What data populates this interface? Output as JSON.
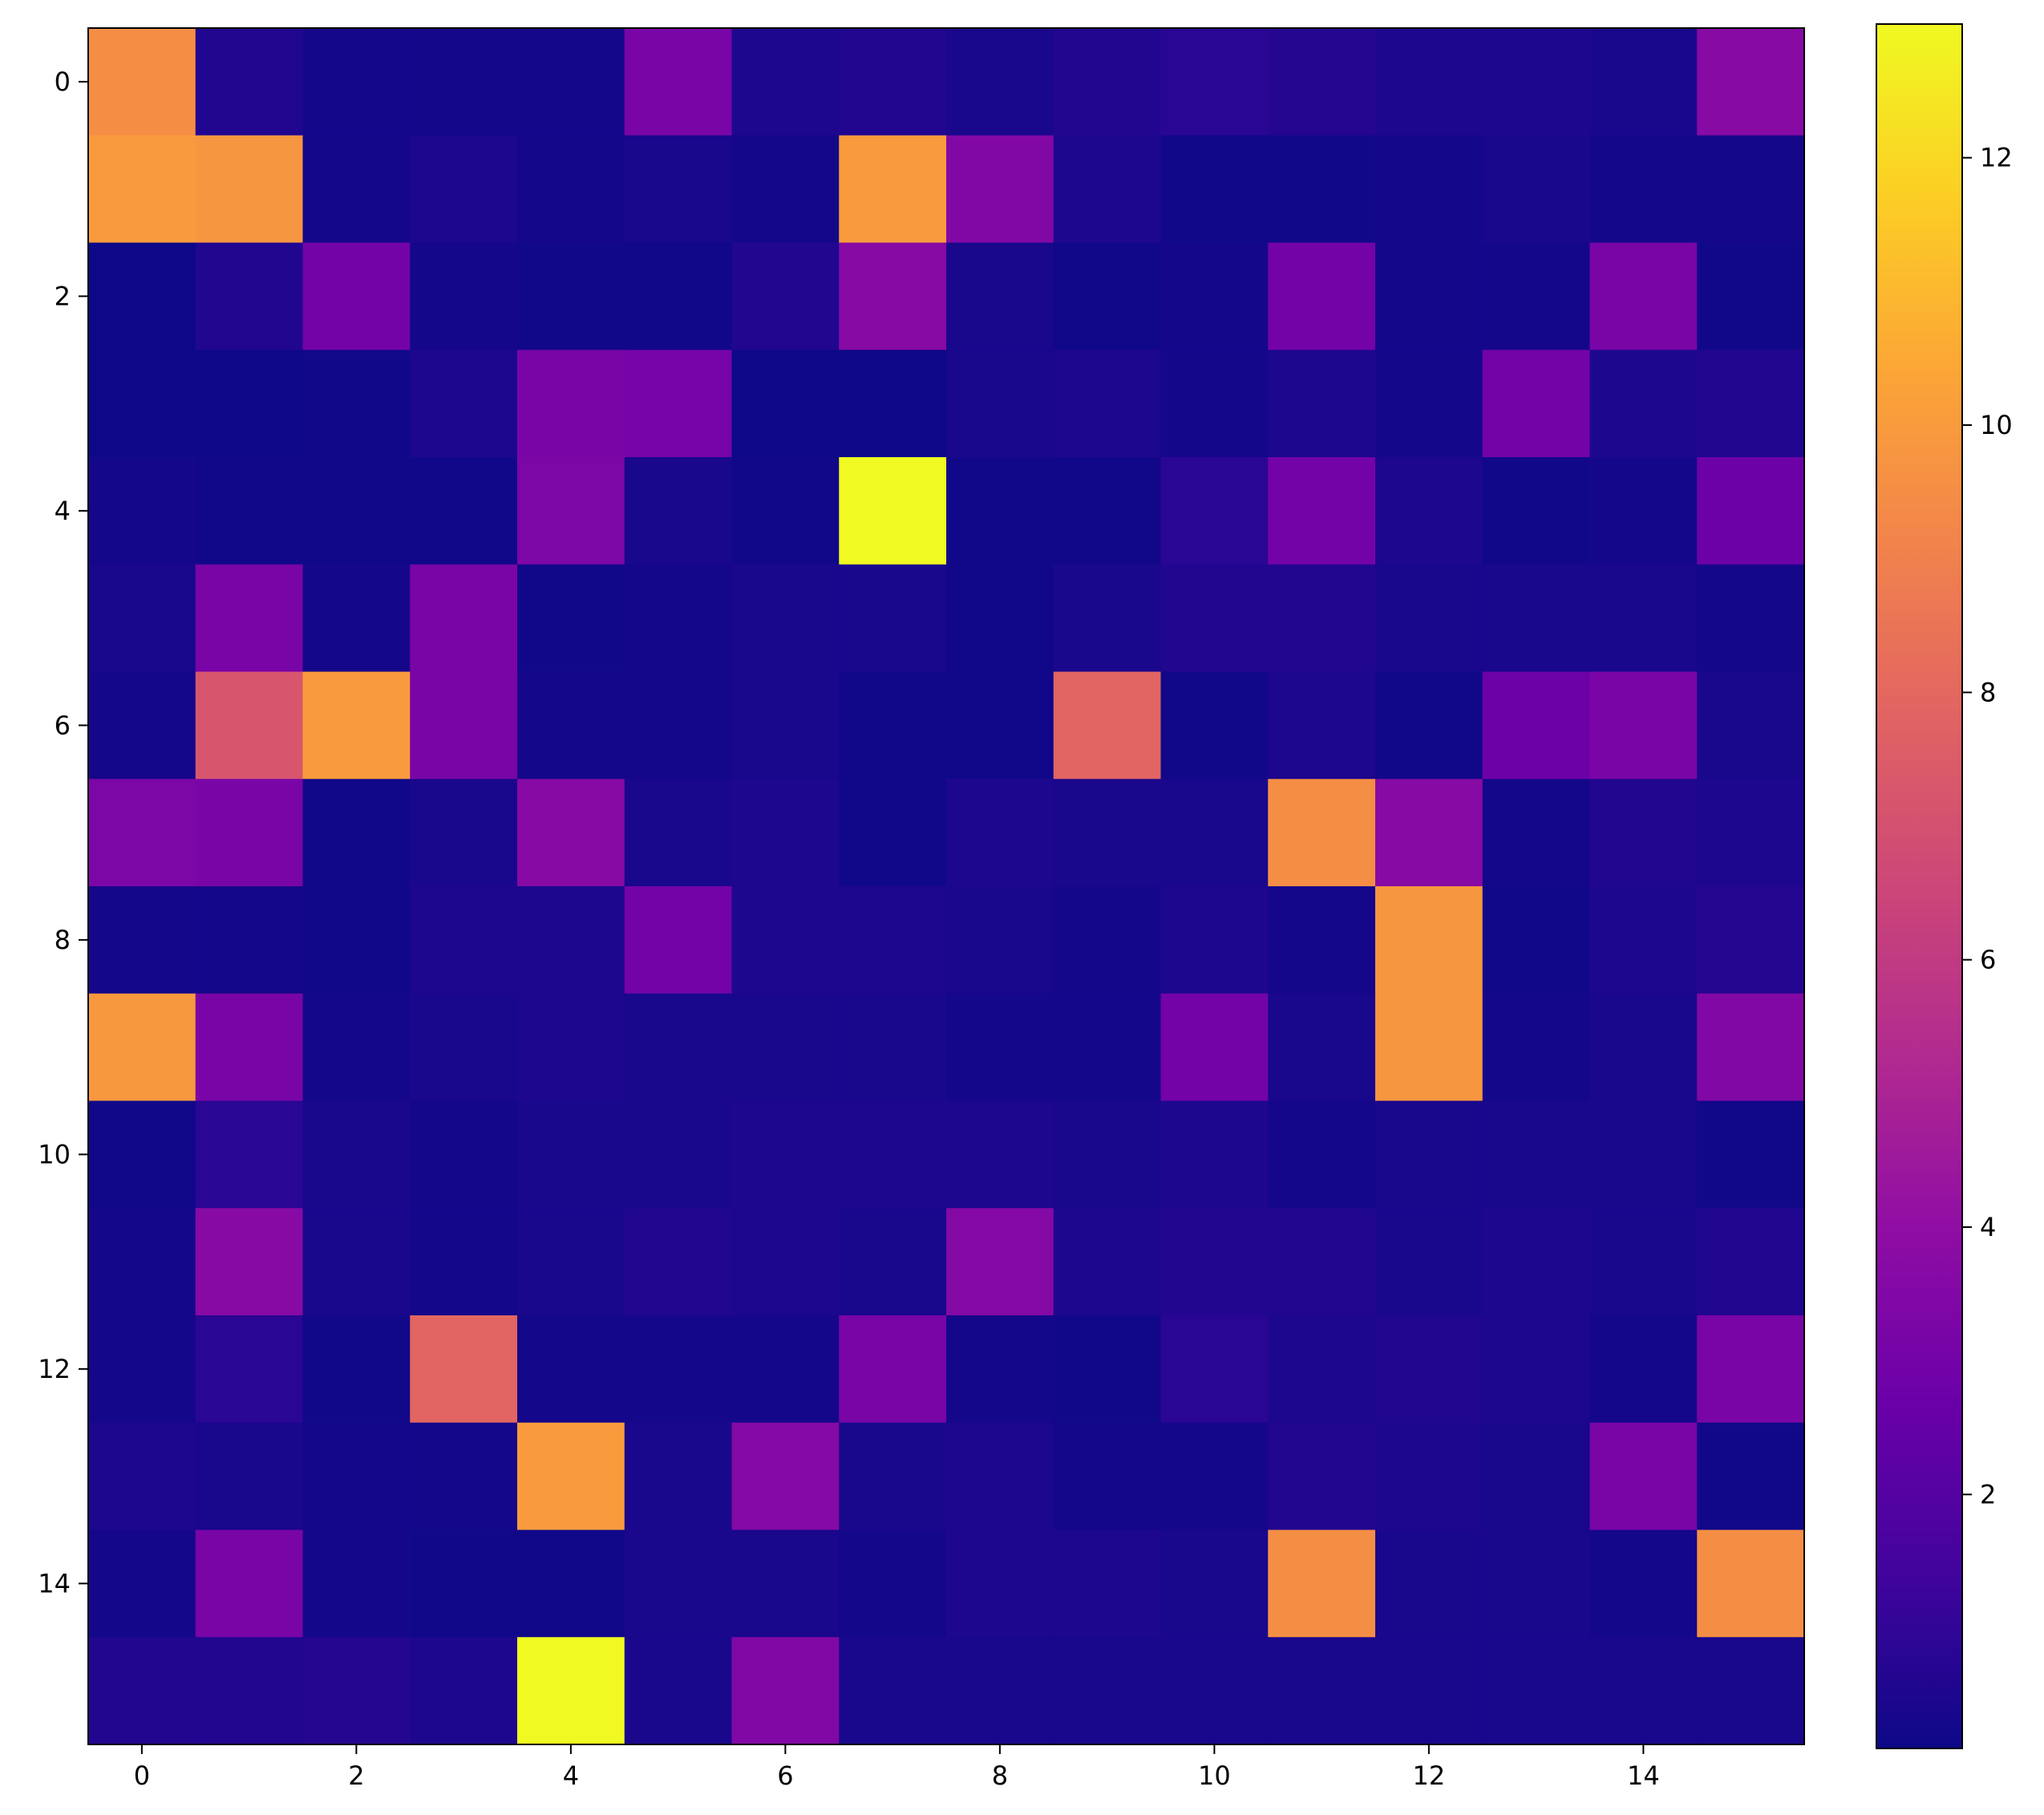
{
  "chart_data": {
    "type": "heatmap",
    "title": "",
    "xlabel": "",
    "ylabel": "",
    "colormap": "plasma",
    "vmin": 0.1,
    "vmax": 13.0,
    "x_ticks": [
      0,
      2,
      4,
      6,
      8,
      10,
      12,
      14
    ],
    "y_ticks": [
      0,
      2,
      4,
      6,
      8,
      10,
      12,
      14
    ],
    "colorbar_ticks": [
      2,
      4,
      6,
      8,
      10,
      12
    ],
    "grid": false,
    "rows": 16,
    "cols": 16,
    "values": [
      [
        9.5,
        0.6,
        0.3,
        0.3,
        0.3,
        3.2,
        0.5,
        0.6,
        0.4,
        0.6,
        0.8,
        0.7,
        0.5,
        0.5,
        0.4,
        3.7
      ],
      [
        10.0,
        9.8,
        0.3,
        0.5,
        0.3,
        0.4,
        0.3,
        10.0,
        3.5,
        0.5,
        0.2,
        0.2,
        0.3,
        0.4,
        0.3,
        0.3
      ],
      [
        0.1,
        0.6,
        3.0,
        0.3,
        0.2,
        0.2,
        0.6,
        3.7,
        0.4,
        0.2,
        0.3,
        3.0,
        0.3,
        0.3,
        3.2,
        0.2
      ],
      [
        0.1,
        0.1,
        0.2,
        0.5,
        3.2,
        3.1,
        0.1,
        0.1,
        0.4,
        0.5,
        0.3,
        0.5,
        0.3,
        3.0,
        0.5,
        0.6
      ],
      [
        0.3,
        0.2,
        0.2,
        0.2,
        3.3,
        0.4,
        0.2,
        13.0,
        0.2,
        0.2,
        0.8,
        3.0,
        0.5,
        0.2,
        0.3,
        2.8
      ],
      [
        0.4,
        3.2,
        0.3,
        3.2,
        0.2,
        0.3,
        0.4,
        0.4,
        0.2,
        0.4,
        0.6,
        0.6,
        0.4,
        0.4,
        0.4,
        0.3
      ],
      [
        0.3,
        7.2,
        10.0,
        3.2,
        0.3,
        0.3,
        0.4,
        0.2,
        0.2,
        7.9,
        0.2,
        0.5,
        0.2,
        2.8,
        3.2,
        0.4
      ],
      [
        3.3,
        3.2,
        0.2,
        0.4,
        3.7,
        0.4,
        0.5,
        0.2,
        0.5,
        0.4,
        0.4,
        9.5,
        3.7,
        0.3,
        0.6,
        0.5
      ],
      [
        0.3,
        0.3,
        0.2,
        0.5,
        0.5,
        3.0,
        0.5,
        0.5,
        0.4,
        0.3,
        0.5,
        0.3,
        9.8,
        0.2,
        0.5,
        0.7
      ],
      [
        9.9,
        3.2,
        0.3,
        0.4,
        0.5,
        0.4,
        0.4,
        0.4,
        0.3,
        0.3,
        3.0,
        0.4,
        9.8,
        0.3,
        0.4,
        3.5
      ],
      [
        0.2,
        0.8,
        0.4,
        0.3,
        0.4,
        0.4,
        0.5,
        0.5,
        0.5,
        0.4,
        0.5,
        0.3,
        0.4,
        0.4,
        0.4,
        0.2
      ],
      [
        0.3,
        3.7,
        0.4,
        0.3,
        0.4,
        0.6,
        0.5,
        0.4,
        3.6,
        0.5,
        0.6,
        0.6,
        0.4,
        0.5,
        0.4,
        0.6
      ],
      [
        0.3,
        0.8,
        0.2,
        7.9,
        0.3,
        0.3,
        0.3,
        3.2,
        0.3,
        0.2,
        0.8,
        0.5,
        0.6,
        0.5,
        0.3,
        3.2
      ],
      [
        0.5,
        0.4,
        0.3,
        0.3,
        10.0,
        0.4,
        3.6,
        0.4,
        0.5,
        0.3,
        0.3,
        0.6,
        0.5,
        0.4,
        3.2,
        0.2
      ],
      [
        0.3,
        3.2,
        0.3,
        0.2,
        0.2,
        0.4,
        0.4,
        0.3,
        0.5,
        0.5,
        0.4,
        9.5,
        0.4,
        0.4,
        0.3,
        9.5
      ],
      [
        0.6,
        0.6,
        0.7,
        0.5,
        13.0,
        0.4,
        3.5,
        0.4,
        0.4,
        0.4,
        0.4,
        0.4,
        0.4,
        0.4,
        0.4,
        0.4
      ]
    ]
  }
}
